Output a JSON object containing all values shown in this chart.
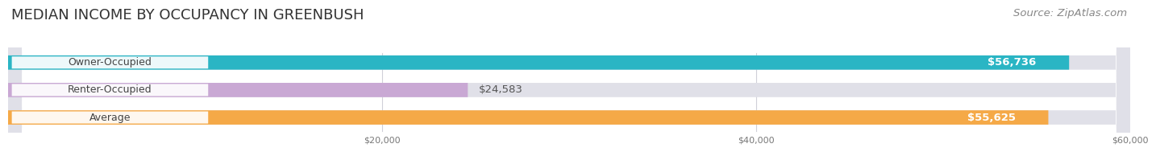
{
  "title": "MEDIAN INCOME BY OCCUPANCY IN GREENBUSH",
  "source": "Source: ZipAtlas.com",
  "categories": [
    "Owner-Occupied",
    "Renter-Occupied",
    "Average"
  ],
  "values": [
    56736,
    24583,
    55625
  ],
  "bar_colors": [
    "#2ab5c4",
    "#c9a8d4",
    "#f5a947"
  ],
  "bar_bg_color": "#e0e0e8",
  "value_labels": [
    "$56,736",
    "$24,583",
    "$55,625"
  ],
  "xlim": [
    0,
    60000
  ],
  "xticks": [
    20000,
    40000,
    60000
  ],
  "xtick_labels": [
    "$20,000",
    "$40,000",
    "$60,000"
  ],
  "title_fontsize": 13,
  "source_fontsize": 9.5,
  "label_fontsize": 9,
  "value_fontsize": 9.5,
  "bar_height": 0.52,
  "background_color": "#ffffff",
  "title_color": "#333333",
  "source_color": "#888888",
  "grid_color": "#d0d0d8",
  "label_bg_color": "#ffffff",
  "value_label_color": "#ffffff",
  "renter_value_color": "#555555"
}
